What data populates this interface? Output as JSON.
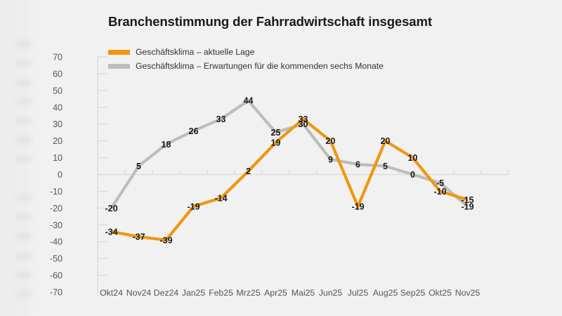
{
  "chart_data": {
    "type": "line",
    "title": "Branchenstimmung der Fahrradwirtschaft insgesamt",
    "xlabel": "",
    "ylabel": "",
    "ylim": [
      -70,
      70
    ],
    "yticks": [
      "70",
      "60",
      "50",
      "40",
      "30",
      "20",
      "10",
      "0",
      "-10",
      "-20",
      "-30",
      "-40",
      "-50",
      "-60",
      "-70"
    ],
    "ytick_values": [
      70,
      60,
      50,
      40,
      30,
      20,
      10,
      0,
      -10,
      -20,
      -30,
      -40,
      -50,
      -60,
      -70
    ],
    "categories": [
      "Okt24",
      "Nov24",
      "Dez24",
      "Jan25",
      "Feb25",
      "Mrz25",
      "Apr25",
      "Mai25",
      "Jun25",
      "Jul25",
      "Aug25",
      "Sep25",
      "Okt25",
      "Nov25"
    ],
    "grid": false,
    "legend_position": "top-left",
    "series": [
      {
        "name": "Geschäftsklima – aktuelle Lage",
        "color": "#f0960f",
        "values": [
          -34,
          -37,
          -39,
          -19,
          -14,
          2,
          19,
          33,
          20,
          -19,
          20,
          10,
          -10,
          -15
        ]
      },
      {
        "name": "Geschäftsklima – Erwartungen für die kommenden sechs Monate",
        "color": "#bdbdbd",
        "values": [
          -20,
          5,
          18,
          26,
          33,
          44,
          25,
          30,
          9,
          6,
          5,
          0,
          -5,
          -19
        ]
      }
    ]
  }
}
